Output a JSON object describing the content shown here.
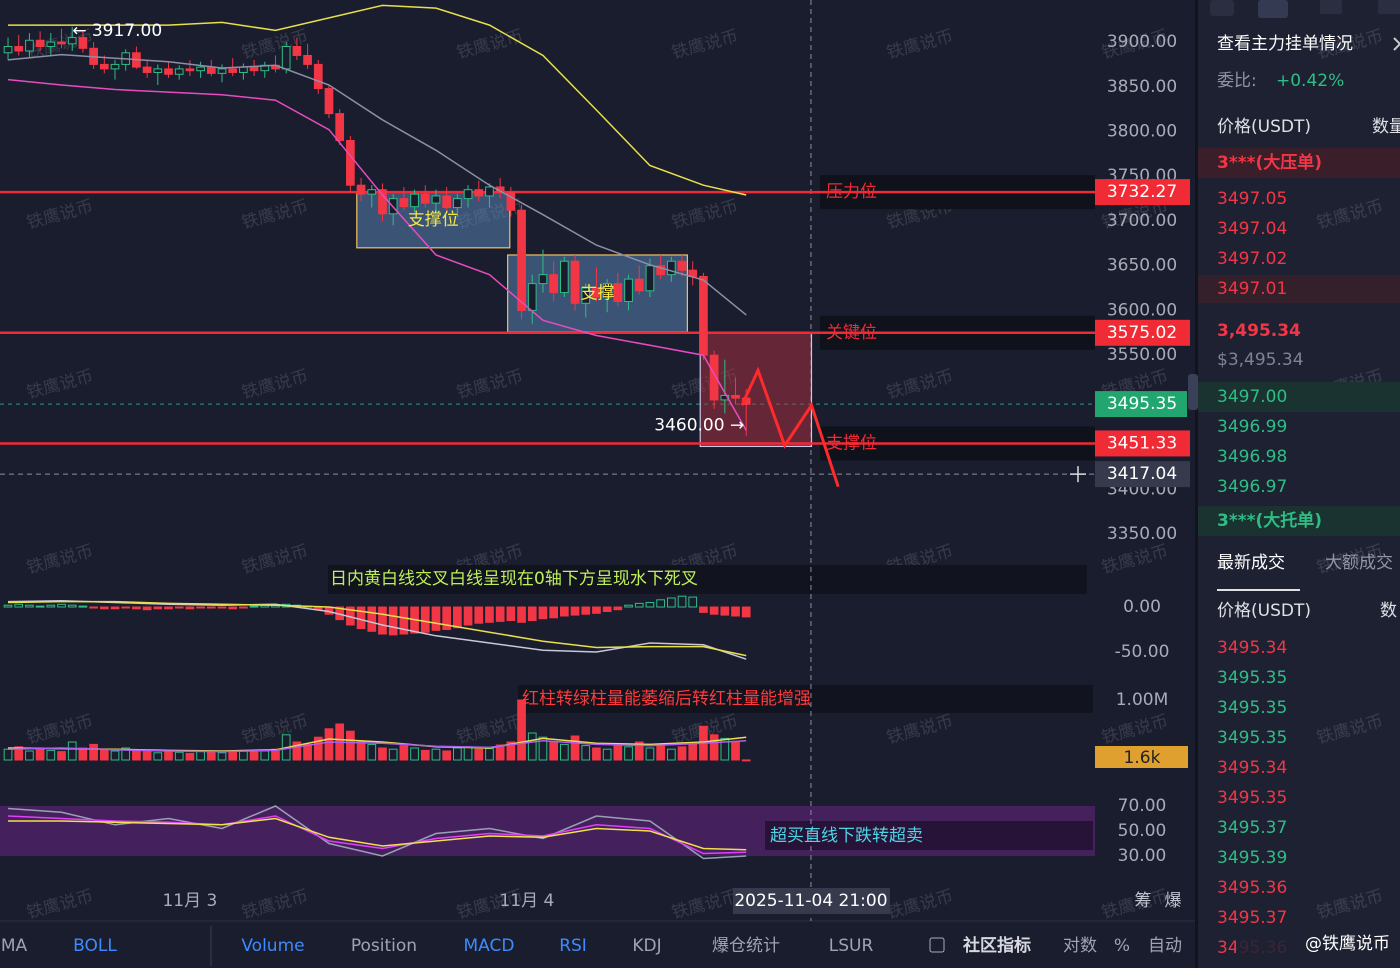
{
  "chart_data": {
    "type": "candlestick",
    "xlim": [
      -0.75,
      101.6
    ],
    "xticks": [
      {
        "value": 17,
        "label": "11月 3"
      },
      {
        "value": 48.5,
        "label": "11月 4"
      }
    ],
    "ylim": [
      3330,
      3947
    ],
    "yticks": [
      {
        "value": 3900,
        "label": "3900.00"
      },
      {
        "value": 3850,
        "label": "3850.00"
      },
      {
        "value": 3800,
        "label": "3800.00"
      },
      {
        "value": 3750,
        "label": "3750.00"
      },
      {
        "value": 3700,
        "label": "3700.00"
      },
      {
        "value": 3650,
        "label": "3650.00"
      },
      {
        "value": 3600,
        "label": "3600.00"
      },
      {
        "value": 3550,
        "label": "3550.00"
      },
      {
        "value": 3400,
        "label": "3400.00"
      },
      {
        "value": 3350,
        "label": "3350.00"
      }
    ],
    "up_color": "#2ebd85",
    "down_color": "#f23645",
    "candles": [
      [
        3888,
        3905,
        3880,
        3895
      ],
      [
        3895,
        3908,
        3885,
        3890
      ],
      [
        3890,
        3910,
        3882,
        3902
      ],
      [
        3902,
        3912,
        3890,
        3895
      ],
      [
        3895,
        3910,
        3885,
        3900
      ],
      [
        3900,
        3915,
        3893,
        3898
      ],
      [
        3898,
        3917,
        3890,
        3905
      ],
      [
        3905,
        3912,
        3888,
        3893
      ],
      [
        3893,
        3900,
        3870,
        3875
      ],
      [
        3875,
        3885,
        3865,
        3870
      ],
      [
        3870,
        3880,
        3858,
        3875
      ],
      [
        3875,
        3892,
        3868,
        3888
      ],
      [
        3888,
        3895,
        3870,
        3872
      ],
      [
        3872,
        3880,
        3860,
        3866
      ],
      [
        3866,
        3875,
        3852,
        3870
      ],
      [
        3870,
        3878,
        3860,
        3864
      ],
      [
        3864,
        3874,
        3858,
        3870
      ],
      [
        3870,
        3880,
        3862,
        3868
      ],
      [
        3868,
        3878,
        3860,
        3872
      ],
      [
        3872,
        3880,
        3862,
        3865
      ],
      [
        3865,
        3875,
        3855,
        3870
      ],
      [
        3870,
        3882,
        3862,
        3866
      ],
      [
        3866,
        3876,
        3858,
        3872
      ],
      [
        3872,
        3880,
        3862,
        3868
      ],
      [
        3868,
        3878,
        3860,
        3874
      ],
      [
        3874,
        3885,
        3866,
        3870
      ],
      [
        3870,
        3900,
        3865,
        3895
      ],
      [
        3895,
        3905,
        3880,
        3885
      ],
      [
        3885,
        3898,
        3870,
        3875
      ],
      [
        3875,
        3880,
        3842,
        3848
      ],
      [
        3848,
        3852,
        3815,
        3820
      ],
      [
        3820,
        3825,
        3785,
        3790
      ],
      [
        3790,
        3795,
        3732,
        3740
      ],
      [
        3740,
        3748,
        3722,
        3730
      ],
      [
        3730,
        3740,
        3715,
        3735
      ],
      [
        3735,
        3742,
        3700,
        3708
      ],
      [
        3708,
        3730,
        3695,
        3725
      ],
      [
        3725,
        3738,
        3712,
        3716
      ],
      [
        3716,
        3735,
        3710,
        3730
      ],
      [
        3730,
        3740,
        3715,
        3720
      ],
      [
        3720,
        3735,
        3708,
        3728
      ],
      [
        3728,
        3738,
        3712,
        3715
      ],
      [
        3715,
        3730,
        3705,
        3725
      ],
      [
        3725,
        3740,
        3715,
        3735
      ],
      [
        3735,
        3745,
        3722,
        3728
      ],
      [
        3728,
        3742,
        3715,
        3738
      ],
      [
        3738,
        3748,
        3725,
        3732
      ],
      [
        3732,
        3738,
        3705,
        3712
      ],
      [
        3712,
        3718,
        3590,
        3600
      ],
      [
        3600,
        3640,
        3585,
        3630
      ],
      [
        3630,
        3668,
        3620,
        3640
      ],
      [
        3640,
        3655,
        3610,
        3620
      ],
      [
        3620,
        3660,
        3615,
        3655
      ],
      [
        3655,
        3662,
        3600,
        3608
      ],
      [
        3608,
        3630,
        3592,
        3625
      ],
      [
        3625,
        3648,
        3610,
        3615
      ],
      [
        3615,
        3635,
        3598,
        3630
      ],
      [
        3630,
        3642,
        3605,
        3610
      ],
      [
        3610,
        3640,
        3600,
        3635
      ],
      [
        3635,
        3650,
        3618,
        3622
      ],
      [
        3622,
        3658,
        3615,
        3650
      ],
      [
        3650,
        3662,
        3635,
        3640
      ],
      [
        3640,
        3660,
        3632,
        3655
      ],
      [
        3655,
        3662,
        3638,
        3645
      ],
      [
        3645,
        3655,
        3628,
        3638
      ],
      [
        3638,
        3642,
        3545,
        3550
      ],
      [
        3550,
        3555,
        3490,
        3500
      ],
      [
        3500,
        3545,
        3485,
        3505
      ],
      [
        3505,
        3525,
        3495,
        3502
      ],
      [
        3502,
        3512,
        3460,
        3495
      ]
    ],
    "high_label": {
      "value": 3917,
      "label": "← 3917.00",
      "index": 6
    },
    "low_label": {
      "value": 3460,
      "label": "3460.00 →",
      "index": 69
    },
    "line_x": [
      0,
      5,
      10,
      15,
      20,
      25,
      30,
      35,
      40,
      45,
      50,
      55,
      60,
      65,
      69
    ],
    "bollinger": [
      {
        "color": "#e8e04a",
        "values": [
          3919,
          3919,
          3919,
          3919,
          3922,
          3913,
          3927,
          3941,
          3938,
          3919,
          3885,
          3824,
          3762,
          3740,
          3729
        ]
      },
      {
        "color": "#8e8fa6",
        "values": [
          3880,
          3886,
          3882,
          3878,
          3871,
          3874,
          3852,
          3813,
          3779,
          3740,
          3707,
          3673,
          3651,
          3634,
          3595
        ]
      },
      {
        "color": "#e84bc0",
        "values": [
          3858,
          3852,
          3847,
          3844,
          3841,
          3835,
          3802,
          3729,
          3662,
          3640,
          3589,
          3572,
          3561,
          3550,
          3466
        ]
      }
    ],
    "price_lines": [
      {
        "value": 3732.27,
        "text": "压力位"
      },
      {
        "value": 3575.02,
        "text": "关键位"
      },
      {
        "value": 3451.33,
        "text": "支撑位"
      }
    ],
    "line_color": "#f02b35",
    "last_price": 3495.35,
    "crosshair": {
      "index": 75.05,
      "price": 3417.04,
      "time": "2025-11-04 21:00"
    },
    "boxes": [
      {
        "text": "支撑位",
        "x": [
          32.6,
          46.9
        ],
        "y": [
          3670,
          3732
        ],
        "color": "#5b8bbd"
      },
      {
        "text": "支撑",
        "x": [
          46.7,
          63.5
        ],
        "y": [
          3576,
          3662
        ],
        "color": "#5b8bbd"
      },
      {
        "x": [
          64.7,
          75.1
        ],
        "y": [
          3448,
          3575
        ],
        "color": "#b0303f"
      }
    ],
    "forecast": {
      "x": [
        68.6,
        70.1,
        72.6,
        75.1,
        77.6
      ],
      "y": [
        3494,
        3533,
        3449,
        3494,
        3403
      ],
      "color": "#ff2a2a"
    },
    "macd": {
      "ylim": [
        -65,
        35
      ],
      "yticks": [
        {
          "value": 0,
          "label": "0.00"
        },
        {
          "value": -50,
          "label": "-50.00"
        }
      ],
      "text": "日内黄白线交叉白线呈现在0轴下方呈现水下死叉",
      "hist": [
        2,
        3,
        2,
        1,
        2,
        3,
        2,
        1,
        -1,
        -2,
        -2,
        -1,
        -2,
        -3,
        -2,
        -2,
        -1,
        -2,
        -1,
        -1,
        -1,
        -2,
        -1,
        1,
        2,
        2,
        3,
        2,
        1,
        -3,
        -8,
        -14,
        -20,
        -24,
        -27,
        -30,
        -31,
        -30,
        -29,
        -28,
        -26,
        -25,
        -23,
        -20,
        -18,
        -17,
        -16,
        -15,
        -17,
        -15,
        -13,
        -12,
        -10,
        -9,
        -8,
        -7,
        -5,
        -3,
        2,
        4,
        5,
        8,
        10,
        12,
        11,
        -6,
        -8,
        -9,
        -10,
        -11
      ],
      "lines": [
        {
          "color": "#c8c8d4",
          "values": [
            6,
            7,
            5,
            3,
            2,
            3,
            -5,
            -20,
            -32,
            -40,
            -48,
            -50,
            -40,
            -42,
            -58
          ]
        },
        {
          "color": "#e8e04a",
          "values": [
            5,
            6,
            6,
            4,
            3,
            2,
            0,
            -8,
            -18,
            -28,
            -38,
            -45,
            -44,
            -44,
            -54
          ]
        }
      ]
    },
    "volume": {
      "ylim": [
        0,
        1250000
      ],
      "yticks": [
        {
          "value": 1000000,
          "label": "1.00M"
        }
      ],
      "text": "红柱转绿柱量能萎缩后转红柱量能增强",
      "last_label": "1.6k",
      "values": [
        180000,
        220000,
        150000,
        200000,
        160000,
        140000,
        300000,
        200000,
        260000,
        180000,
        150000,
        200000,
        160000,
        140000,
        120000,
        150000,
        130000,
        110000,
        140000,
        150000,
        120000,
        130000,
        160000,
        140000,
        150000,
        180000,
        420000,
        300000,
        260000,
        380000,
        520000,
        600000,
        480000,
        300000,
        260000,
        200000,
        180000,
        240000,
        200000,
        160000,
        180000,
        150000,
        200000,
        220000,
        180000,
        190000,
        250000,
        300000,
        1000000,
        450000,
        380000,
        300000,
        260000,
        400000,
        240000,
        200000,
        180000,
        260000,
        220000,
        300000,
        200000,
        240000,
        180000,
        220000,
        260000,
        560000,
        420000,
        360000,
        300000,
        1600
      ],
      "lines": [
        {
          "color": "#e8e04a",
          "values": [
            200000,
            190000,
            180000,
            160000,
            150000,
            170000,
            350000,
            300000,
            220000,
            200000,
            360000,
            280000,
            260000,
            300000,
            380000
          ]
        },
        {
          "color": "#b05cf0",
          "values": [
            180000,
            200000,
            170000,
            150000,
            140000,
            160000,
            300000,
            280000,
            230000,
            210000,
            320000,
            260000,
            240000,
            280000,
            320000
          ]
        }
      ]
    },
    "rsi": {
      "ylim": [
        10,
        90
      ],
      "yticks": [
        {
          "value": 70,
          "label": "70.00"
        },
        {
          "value": 50,
          "label": "50.00"
        },
        {
          "value": 30,
          "label": "30.00"
        }
      ],
      "text": "超买直线下跌转超卖",
      "lines": [
        {
          "color": "#9aa0b4",
          "values": [
            68,
            65,
            55,
            60,
            52,
            70,
            40,
            30,
            48,
            52,
            44,
            62,
            58,
            28,
            30
          ]
        },
        {
          "color": "#e040fb",
          "values": [
            62,
            60,
            58,
            57,
            55,
            62,
            42,
            36,
            44,
            48,
            46,
            55,
            52,
            32,
            33
          ]
        },
        {
          "color": "#f0e04a",
          "values": [
            58,
            58,
            57,
            56,
            55,
            60,
            45,
            38,
            42,
            46,
            45,
            52,
            50,
            36,
            35
          ]
        }
      ]
    }
  },
  "watermark": "铁鹰说币",
  "signature": "@铁鹰说币",
  "order_book": {
    "title": "查看主力挂单情况",
    "ratio_label": "委比:",
    "ratio_value": "+0.42%",
    "price_header": "价格(USDT)",
    "qty_header": "数量",
    "big_ask": "3***(大压单)",
    "asks": [
      "3497.05",
      "3497.04",
      "3497.02",
      "3497.01"
    ],
    "last": "3,495.34",
    "last_usd": "$3,495.34",
    "bids": [
      "3497.00",
      "3496.99",
      "3496.98",
      "3496.97"
    ],
    "big_bid": "3***(大托单)"
  },
  "trades": {
    "tabs": [
      "最新成交",
      "大额成交"
    ],
    "price_header": "价格(USDT)",
    "qty_header": "数",
    "rows": [
      {
        "price": "3495.34",
        "side": "sell"
      },
      {
        "price": "3495.35",
        "side": "buy"
      },
      {
        "price": "3495.35",
        "side": "buy"
      },
      {
        "price": "3495.35",
        "side": "buy"
      },
      {
        "price": "3495.34",
        "side": "sell"
      },
      {
        "price": "3495.35",
        "side": "sell"
      },
      {
        "price": "3495.37",
        "side": "buy"
      },
      {
        "price": "3495.39",
        "side": "buy"
      },
      {
        "price": "3495.36",
        "side": "sell"
      },
      {
        "price": "3495.37",
        "side": "sell"
      },
      {
        "price": "3495.36",
        "side": "sell"
      }
    ]
  },
  "toolbar": {
    "tabs": [
      {
        "text": "MA",
        "active": false
      },
      {
        "text": "BOLL",
        "active": true
      },
      {
        "text": "Volume",
        "active": true
      },
      {
        "text": "Position",
        "active": false
      },
      {
        "text": "MACD",
        "active": true
      },
      {
        "text": "RSI",
        "active": true
      },
      {
        "text": "KDJ",
        "active": false
      },
      {
        "text": "爆仓统计",
        "active": false
      },
      {
        "text": "LSUR",
        "active": false
      },
      {
        "text": "社区指标",
        "active": false
      },
      {
        "text": "对数",
        "active": false
      },
      {
        "text": "%",
        "active": false
      },
      {
        "text": "自动",
        "active": false
      }
    ],
    "side_tools": [
      "筹",
      "爆"
    ]
  }
}
